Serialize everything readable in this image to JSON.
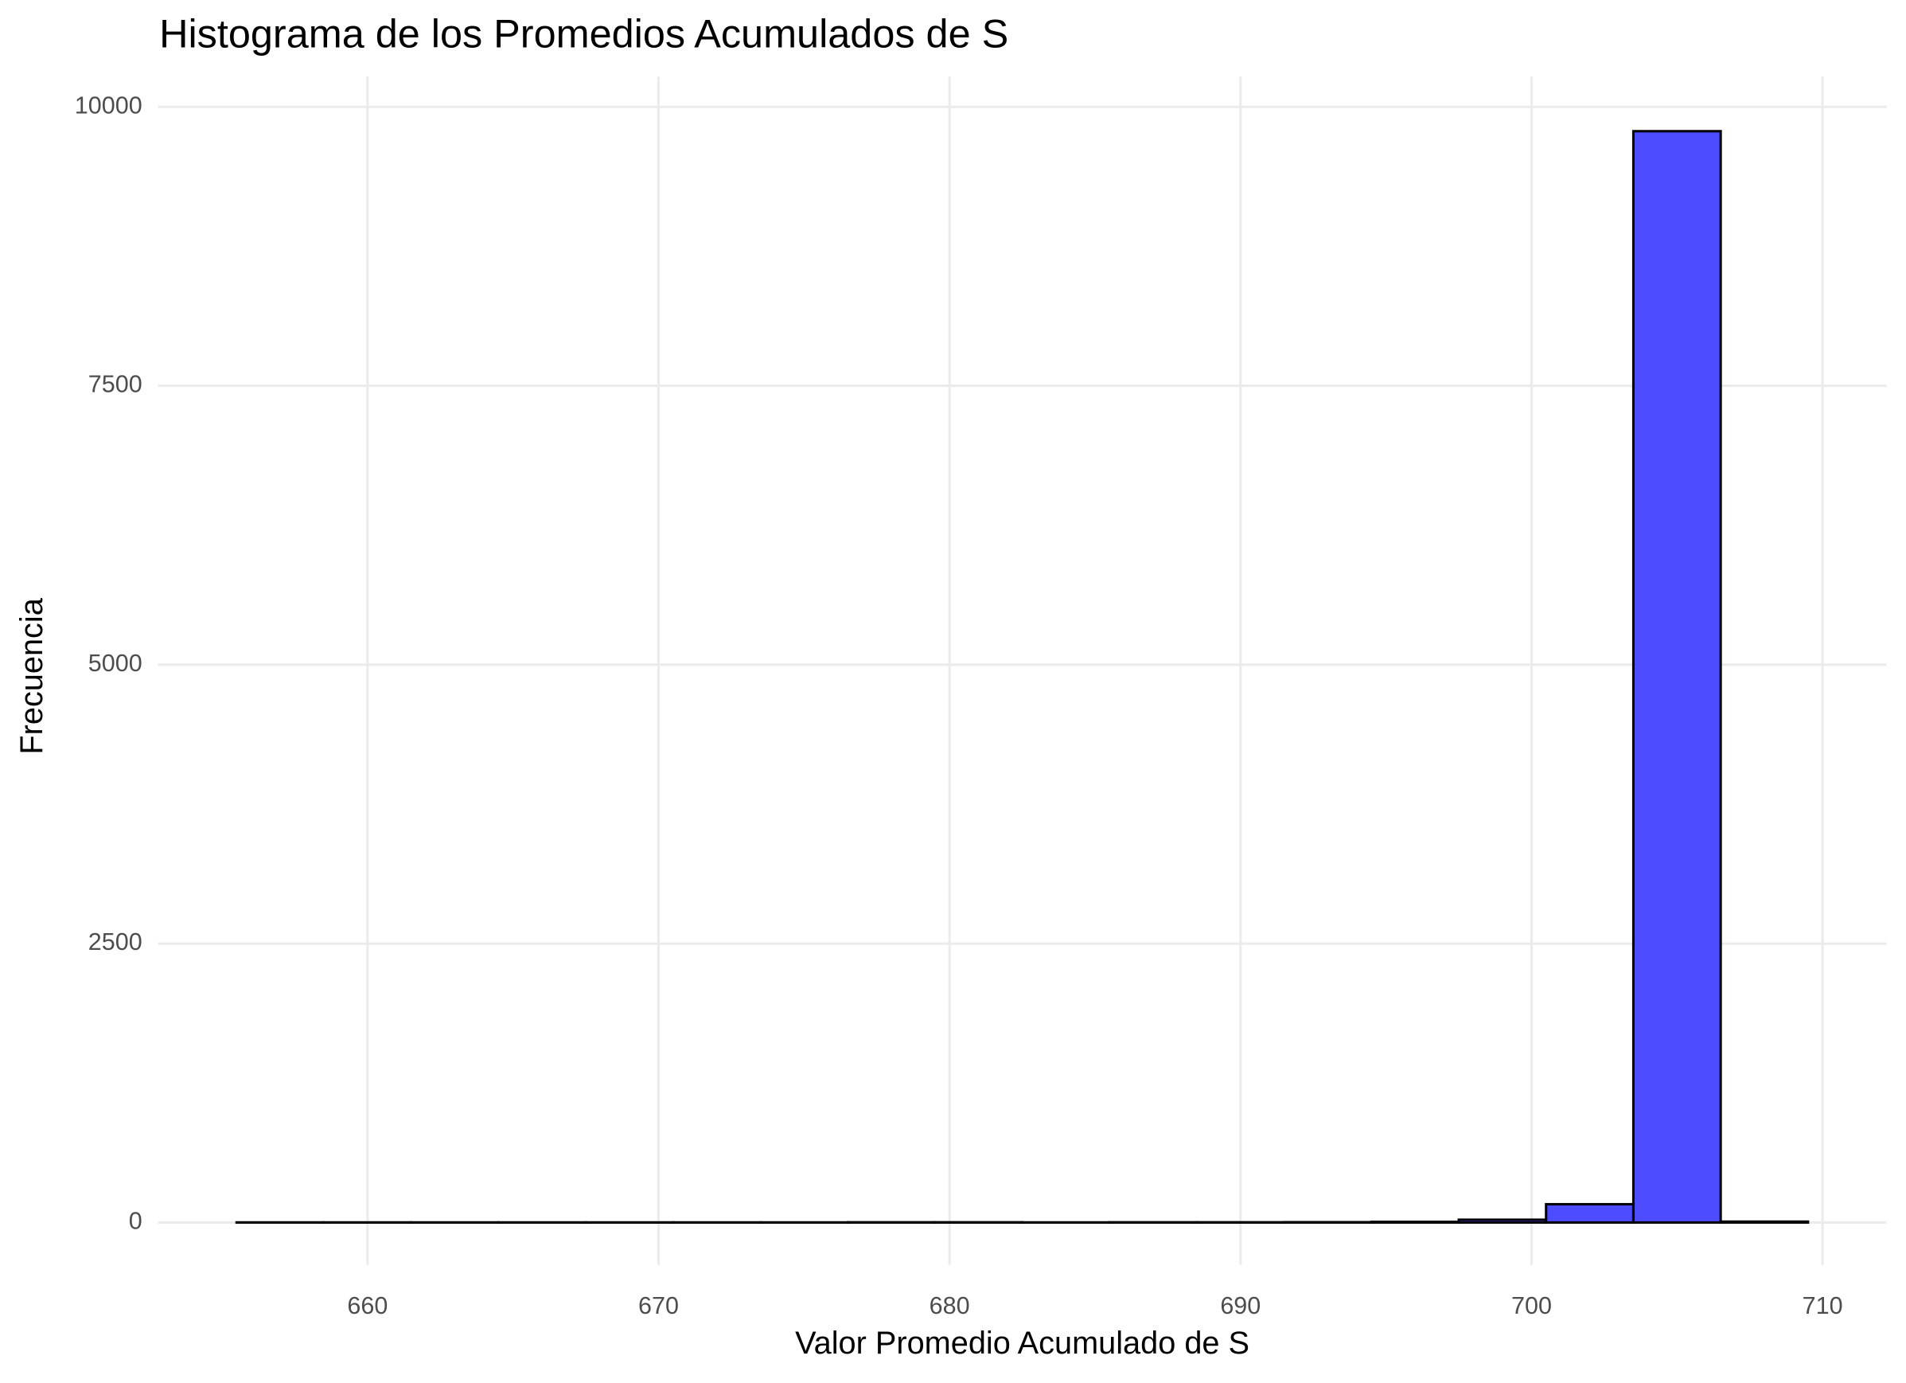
{
  "chart_data": {
    "type": "histogram",
    "title": "Histograma de los Promedios Acumulados de S",
    "x_label": "Valor Promedio Acumulado de S",
    "y_label": "Frecuencia",
    "bins": [
      655.5,
      658.5,
      661.5,
      664.5,
      667.5,
      670.5,
      673.5,
      676.5,
      679.5,
      682.5,
      685.5,
      688.5,
      691.5,
      694.5,
      697.5,
      700.5,
      703.5,
      706.5,
      709.5
    ],
    "values": [
      1,
      1,
      1,
      1,
      1,
      1,
      1,
      2,
      2,
      1,
      2,
      2,
      3,
      6,
      25,
      164,
      9782,
      8
    ],
    "color": "#4d4dff",
    "edge_color": "#000000",
    "xlim": [
      652.8,
      712.2
    ],
    "ylim": [
      -380,
      10270
    ],
    "xticks": [
      660,
      670,
      680,
      690,
      700,
      710
    ],
    "yticks": [
      0,
      2500,
      5000,
      7500,
      10000
    ],
    "grid": true
  }
}
